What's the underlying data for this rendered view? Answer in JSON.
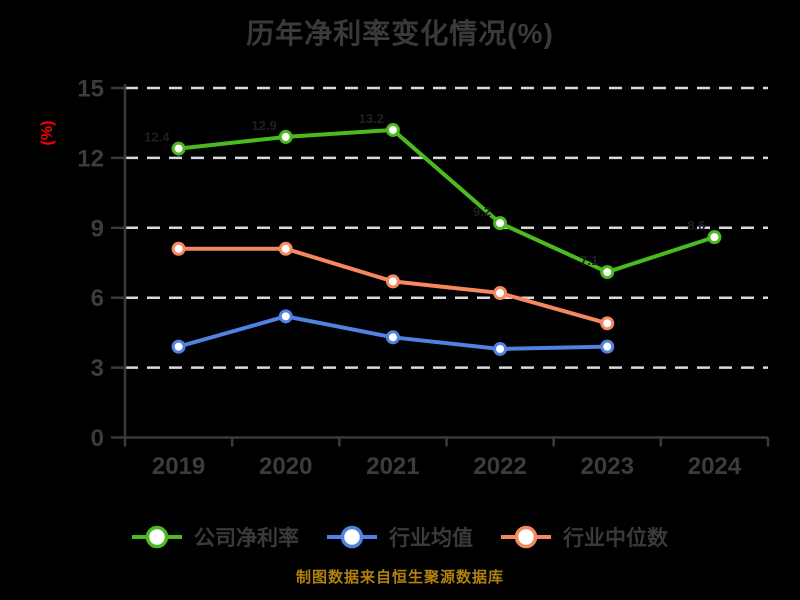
{
  "page": {
    "background": "#000000",
    "text_color": "#3a3a3a"
  },
  "chart_data": {
    "type": "line",
    "title": "历年净利率变化情况(%)",
    "ylabel": "(%)",
    "xlabel": "",
    "categories": [
      "2019",
      "2020",
      "2021",
      "2022",
      "2023",
      "2024"
    ],
    "series": [
      {
        "name": "公司净利率",
        "color": "#4cba1f",
        "values": [
          12.4,
          12.9,
          13.2,
          9.2,
          7.1,
          8.6
        ],
        "show_value_labels": true
      },
      {
        "name": "行业均值",
        "color": "#5181e3",
        "values": [
          3.9,
          5.2,
          4.3,
          3.8,
          3.9,
          null
        ]
      },
      {
        "name": "行业中位数",
        "color": "#f5885f",
        "values": [
          8.1,
          8.1,
          6.7,
          6.2,
          4.9,
          null
        ]
      }
    ],
    "ylim": [
      0,
      15
    ],
    "yticks": [
      0,
      3,
      6,
      9,
      12,
      15
    ],
    "grid": "horizontal-dashed",
    "grid_color": "#d9d9d9",
    "axis_color": "#3a3a3a",
    "tick_label_color": "#3c3c3c",
    "ylabel_color": "#ff0000",
    "value_label_color": "#1f1f1f",
    "marker": "circle-white-fill",
    "legend_position": "bottom",
    "source_note": "制图数据来自恒生聚源数据库",
    "source_note_color": "#b0810f"
  }
}
